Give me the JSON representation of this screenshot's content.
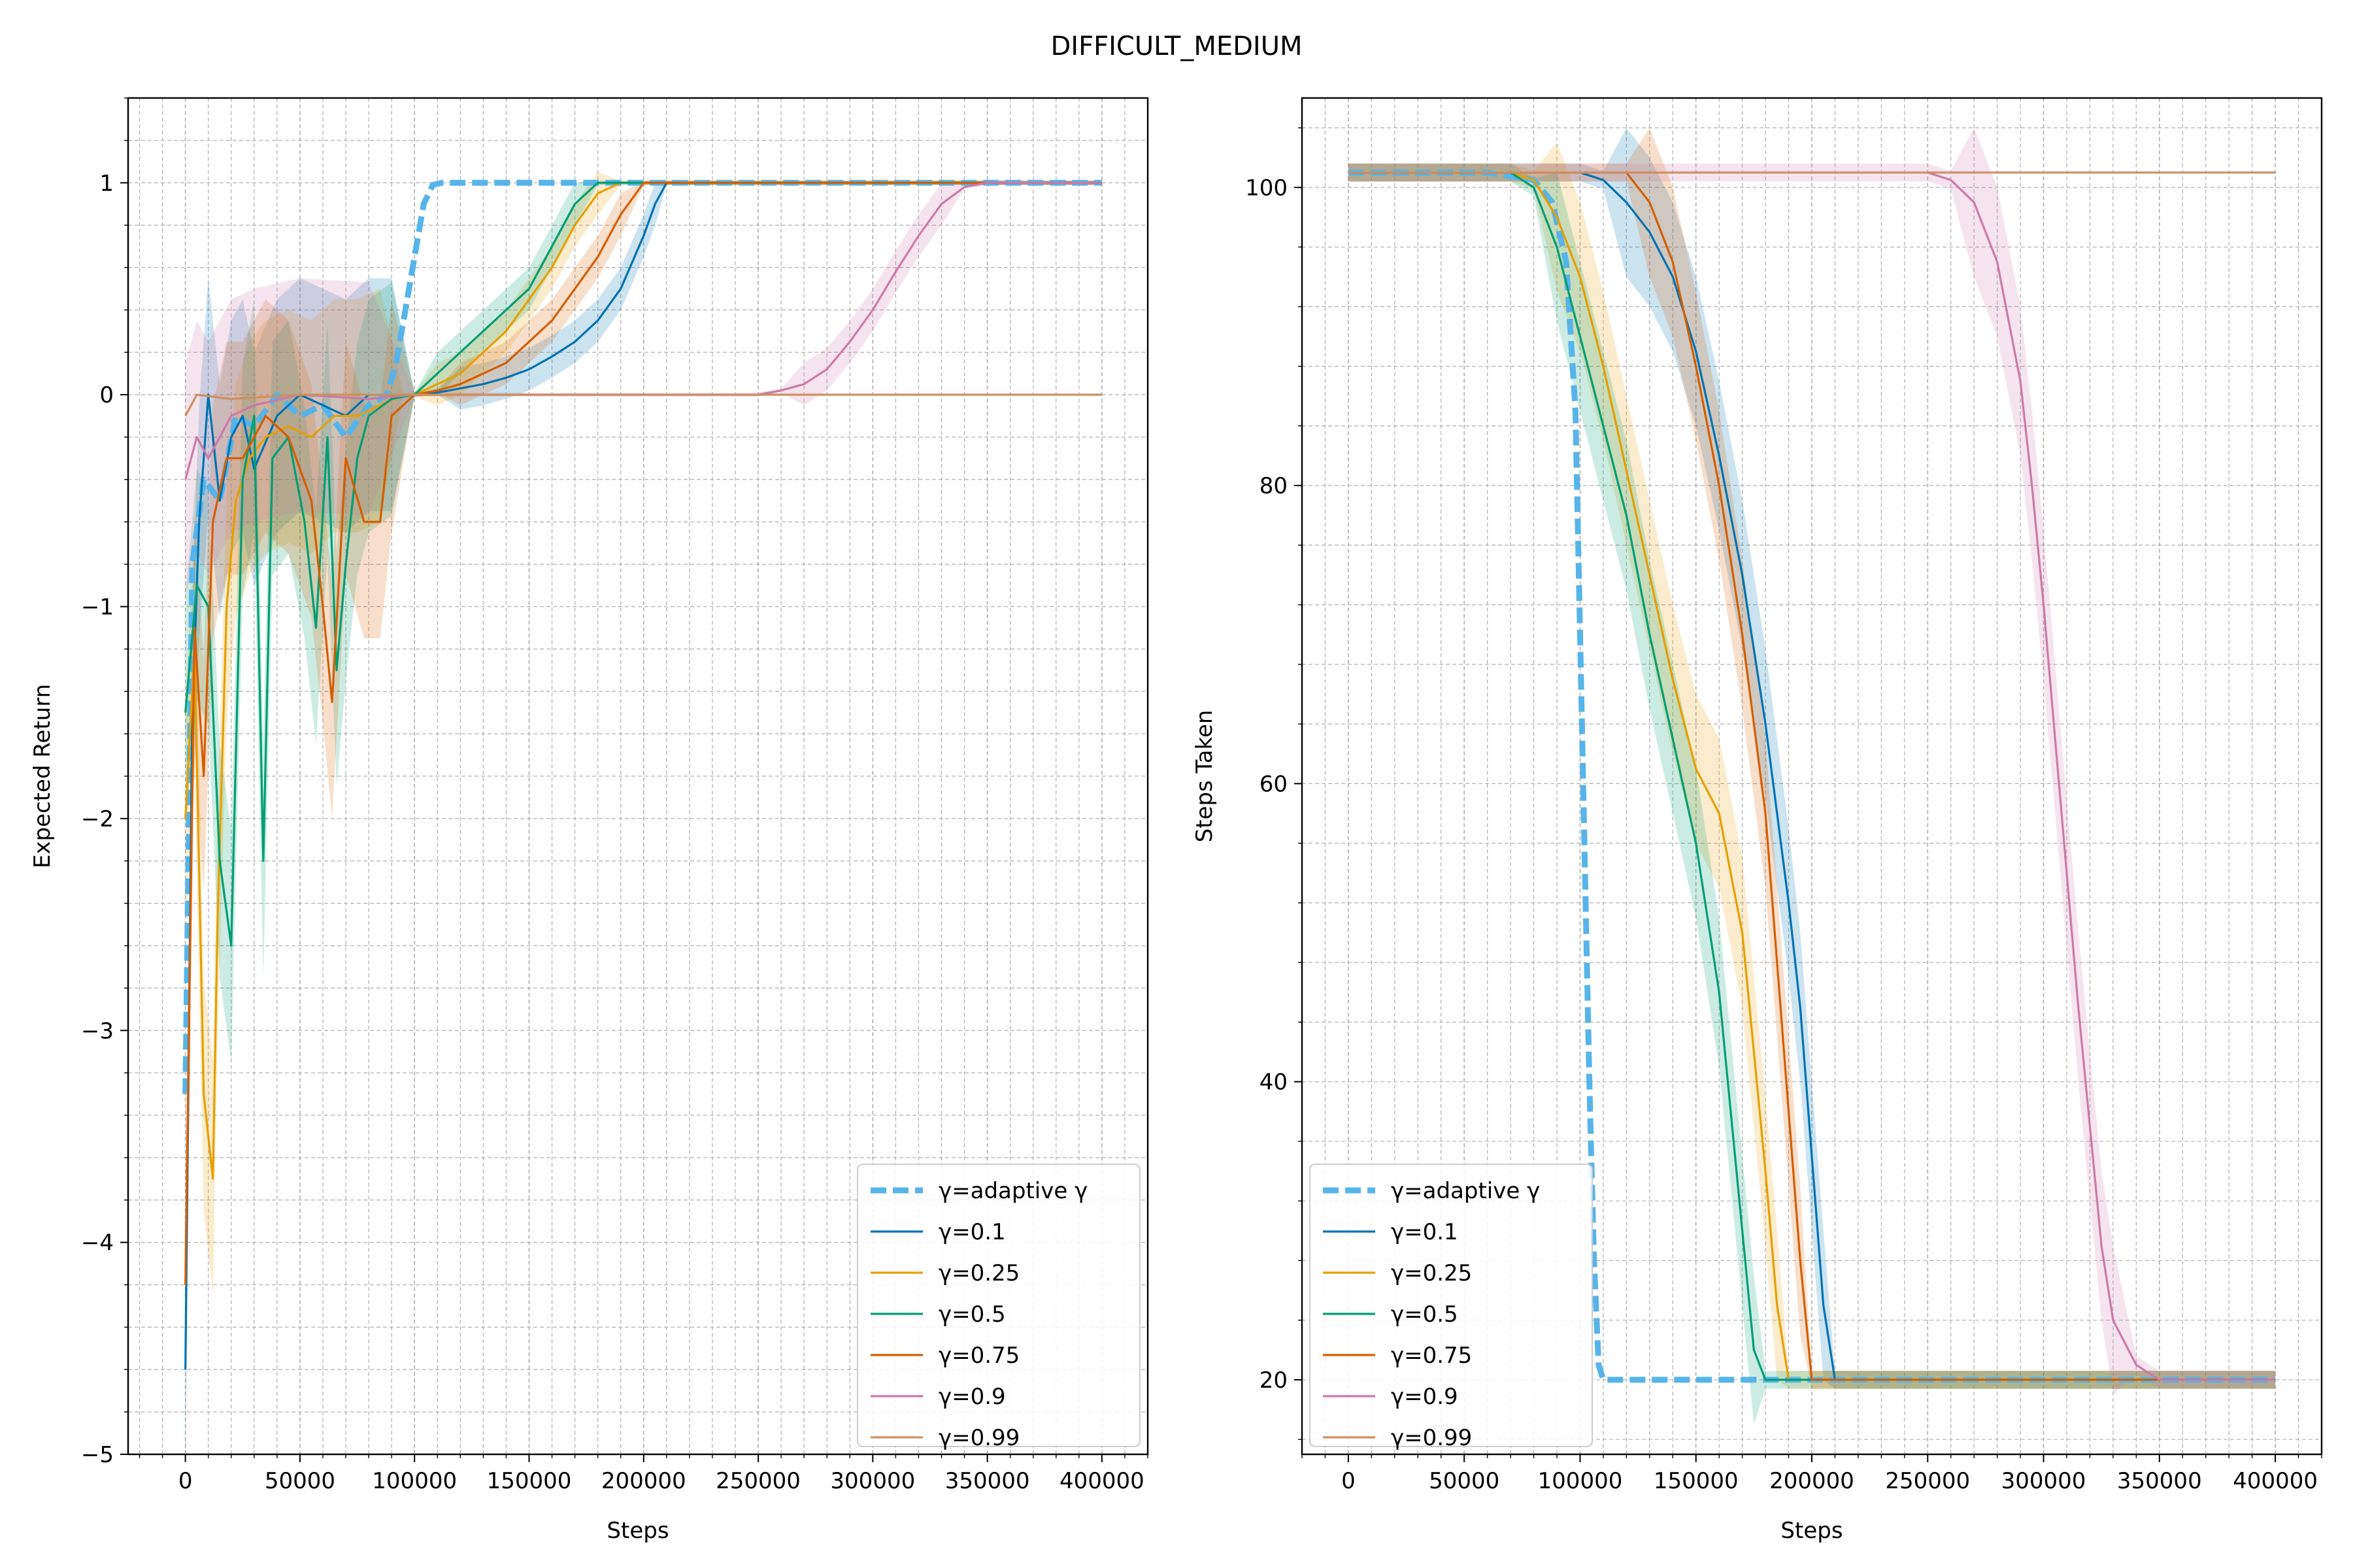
{
  "figure": {
    "title": "DIFFICULT_MEDIUM"
  },
  "colors": {
    "adaptive": "#56b4e9",
    "g01": "#0072b2",
    "g025": "#e69f00",
    "g05": "#009e73",
    "g075": "#d55e00",
    "g09": "#cc79a7",
    "g099": "#ca9161",
    "grid": "#b0b0b0"
  },
  "chart_data": [
    {
      "type": "line",
      "title": "",
      "xlabel": "Steps",
      "ylabel": "Expected Return",
      "xlim": [
        -25000,
        420000
      ],
      "ylim": [
        -5,
        1.4
      ],
      "xticks": [
        0,
        50000,
        100000,
        150000,
        200000,
        250000,
        300000,
        350000,
        400000
      ],
      "yticks": [
        -5,
        -4,
        -3,
        -2,
        -1,
        0,
        1
      ],
      "xtick_labels": [
        "0",
        "50000",
        "100000",
        "150000",
        "200000",
        "250000",
        "300000",
        "350000",
        "400000"
      ],
      "ytick_labels": [
        "−5",
        "−4",
        "−3",
        "−2",
        "−1",
        "0",
        "1"
      ],
      "grid": true,
      "legend_position": "lower-right",
      "series": [
        {
          "name": "γ=adaptive γ",
          "color_key": "adaptive",
          "dashed": true,
          "x": [
            0,
            3000,
            8000,
            15000,
            22000,
            30000,
            40000,
            50000,
            60000,
            70000,
            80000,
            88000,
            92000,
            96000,
            100000,
            104000,
            108000,
            112000,
            150000,
            200000,
            250000,
            300000,
            350000,
            400000
          ],
          "y": [
            -3.3,
            -0.8,
            -0.4,
            -0.5,
            -0.1,
            -0.15,
            0,
            -0.1,
            -0.05,
            -0.2,
            -0.05,
            0,
            0.15,
            0.4,
            0.65,
            0.9,
            0.99,
            1.0,
            1.0,
            1.0,
            1.0,
            1.0,
            1.0,
            1.0
          ]
        },
        {
          "name": "γ=0.1",
          "color_key": "g01",
          "x": [
            0,
            3000,
            6000,
            10000,
            15000,
            20000,
            25000,
            30000,
            40000,
            50000,
            60000,
            70000,
            80000,
            90000,
            100000,
            110000,
            120000,
            130000,
            140000,
            150000,
            160000,
            170000,
            180000,
            190000,
            200000,
            205000,
            210000,
            250000,
            300000,
            350000,
            400000
          ],
          "y": [
            -4.6,
            -1.5,
            -0.6,
            0,
            -0.5,
            -0.2,
            -0.1,
            -0.35,
            -0.1,
            0,
            -0.05,
            -0.1,
            0,
            0,
            0,
            0.01,
            0.03,
            0.05,
            0.08,
            0.12,
            0.18,
            0.25,
            0.35,
            0.5,
            0.75,
            0.9,
            1.0,
            1.0,
            1.0,
            1.0,
            1.0
          ]
        },
        {
          "name": "γ=0.25",
          "color_key": "g025",
          "x": [
            0,
            4000,
            8000,
            12000,
            14000,
            18000,
            22000,
            28000,
            35000,
            45000,
            55000,
            65000,
            75000,
            85000,
            95000,
            100000,
            110000,
            120000,
            130000,
            140000,
            150000,
            160000,
            170000,
            180000,
            190000,
            250000,
            300000,
            350000,
            400000
          ],
          "y": [
            -2.0,
            -1.2,
            -3.3,
            -3.7,
            -2.5,
            -1.0,
            -0.5,
            -0.3,
            -0.2,
            -0.15,
            -0.2,
            -0.1,
            -0.1,
            -0.05,
            0,
            0,
            0.05,
            0.1,
            0.2,
            0.3,
            0.45,
            0.6,
            0.8,
            0.95,
            1.0,
            1.0,
            1.0,
            1.0,
            1.0
          ]
        },
        {
          "name": "γ=0.5",
          "color_key": "g05",
          "x": [
            0,
            5000,
            10000,
            15000,
            20000,
            25000,
            30000,
            34000,
            38000,
            45000,
            52000,
            57000,
            62000,
            66000,
            70000,
            75000,
            80000,
            90000,
            100000,
            110000,
            120000,
            130000,
            140000,
            150000,
            160000,
            170000,
            180000,
            250000,
            300000,
            350000,
            400000
          ],
          "y": [
            -1.5,
            -0.9,
            -1.0,
            -2.2,
            -2.6,
            -0.4,
            -0.1,
            -2.2,
            -0.3,
            -0.2,
            -0.6,
            -1.1,
            -0.2,
            -1.3,
            -0.8,
            -0.3,
            -0.1,
            -0.02,
            0,
            0.1,
            0.2,
            0.3,
            0.4,
            0.5,
            0.7,
            0.9,
            1.0,
            1.0,
            1.0,
            1.0,
            1.0
          ]
        },
        {
          "name": "γ=0.75",
          "color_key": "g075",
          "x": [
            0,
            4000,
            8000,
            12000,
            18000,
            25000,
            35000,
            45000,
            55000,
            60000,
            64000,
            70000,
            78000,
            85000,
            90000,
            100000,
            110000,
            120000,
            130000,
            140000,
            150000,
            160000,
            170000,
            180000,
            190000,
            200000,
            250000,
            300000,
            350000,
            400000
          ],
          "y": [
            -4.2,
            -1.1,
            -1.8,
            -0.6,
            -0.3,
            -0.3,
            -0.1,
            -0.2,
            -0.5,
            -1.0,
            -1.45,
            -0.3,
            -0.6,
            -0.6,
            -0.1,
            0,
            0.02,
            0.05,
            0.1,
            0.15,
            0.25,
            0.35,
            0.5,
            0.65,
            0.85,
            1.0,
            1.0,
            1.0,
            1.0,
            1.0
          ]
        },
        {
          "name": "γ=0.9",
          "color_key": "g09",
          "x": [
            0,
            5000,
            10000,
            20000,
            30000,
            50000,
            80000,
            100000,
            150000,
            200000,
            240000,
            250000,
            260000,
            270000,
            280000,
            290000,
            300000,
            310000,
            320000,
            330000,
            340000,
            350000,
            400000
          ],
          "y": [
            -0.4,
            -0.2,
            -0.3,
            -0.1,
            -0.05,
            0,
            -0.02,
            0,
            0,
            0,
            0,
            0,
            0.02,
            0.05,
            0.12,
            0.25,
            0.4,
            0.58,
            0.75,
            0.9,
            0.98,
            1.0,
            1.0
          ]
        },
        {
          "name": "γ=0.99",
          "color_key": "g099",
          "x": [
            0,
            5000,
            20000,
            50000,
            100000,
            200000,
            300000,
            400000
          ],
          "y": [
            -0.1,
            0,
            -0.02,
            0,
            0,
            0,
            0,
            0
          ]
        }
      ]
    },
    {
      "type": "line",
      "title": "",
      "xlabel": "Steps",
      "ylabel": "Steps Taken",
      "xlim": [
        -20000,
        420000
      ],
      "ylim": [
        15,
        106
      ],
      "xticks": [
        0,
        50000,
        100000,
        150000,
        200000,
        250000,
        300000,
        350000,
        400000
      ],
      "yticks": [
        20,
        40,
        60,
        80,
        100
      ],
      "xtick_labels": [
        "0",
        "50000",
        "100000",
        "150000",
        "200000",
        "250000",
        "300000",
        "350000",
        "400000"
      ],
      "ytick_labels": [
        "20",
        "40",
        "60",
        "80",
        "100"
      ],
      "grid": true,
      "legend_position": "lower-left",
      "series": [
        {
          "name": "γ=adaptive γ",
          "color_key": "adaptive",
          "dashed": true,
          "x": [
            0,
            60000,
            80000,
            88000,
            94000,
            98000,
            100000,
            102000,
            104000,
            106000,
            108000,
            110000,
            150000,
            200000,
            250000,
            300000,
            350000,
            400000
          ],
          "y": [
            101,
            101,
            100.5,
            99,
            95,
            85,
            70,
            55,
            40,
            28,
            21,
            20,
            20,
            20,
            20,
            20,
            20,
            20
          ]
        },
        {
          "name": "γ=0.1",
          "color_key": "g01",
          "x": [
            0,
            60000,
            80000,
            100000,
            110000,
            120000,
            130000,
            140000,
            150000,
            160000,
            170000,
            180000,
            190000,
            195000,
            200000,
            205000,
            210000,
            250000,
            300000,
            350000,
            400000
          ],
          "y": [
            101,
            101,
            101,
            101,
            100.5,
            99,
            97,
            94,
            89,
            82,
            74,
            64,
            52,
            45,
            35,
            25,
            20,
            20,
            20,
            20,
            20
          ]
        },
        {
          "name": "γ=0.25",
          "color_key": "g025",
          "x": [
            0,
            50000,
            70000,
            80000,
            90000,
            100000,
            110000,
            120000,
            130000,
            140000,
            150000,
            160000,
            170000,
            175000,
            180000,
            185000,
            190000,
            250000,
            300000,
            350000,
            400000
          ],
          "y": [
            101,
            101,
            101,
            100.5,
            98,
            94,
            88,
            81,
            74,
            67,
            61,
            58,
            50,
            42,
            34,
            25,
            20,
            20,
            20,
            20,
            20
          ]
        },
        {
          "name": "γ=0.5",
          "color_key": "g05",
          "x": [
            0,
            50000,
            70000,
            80000,
            90000,
            100000,
            110000,
            120000,
            130000,
            140000,
            150000,
            160000,
            165000,
            170000,
            175000,
            180000,
            250000,
            300000,
            350000,
            400000
          ],
          "y": [
            101,
            101,
            101,
            100,
            96,
            90,
            84,
            78,
            70,
            63,
            56,
            46,
            38,
            30,
            22,
            20,
            20,
            20,
            20,
            20
          ]
        },
        {
          "name": "γ=0.75",
          "color_key": "g075",
          "x": [
            0,
            60000,
            80000,
            100000,
            110000,
            120000,
            130000,
            140000,
            150000,
            160000,
            170000,
            180000,
            185000,
            190000,
            195000,
            200000,
            250000,
            300000,
            350000,
            400000
          ],
          "y": [
            101,
            101,
            101,
            101,
            101,
            101,
            99,
            95,
            88,
            80,
            70,
            58,
            48,
            38,
            28,
            20,
            20,
            20,
            20,
            20
          ]
        },
        {
          "name": "γ=0.9",
          "color_key": "g09",
          "x": [
            0,
            100000,
            200000,
            250000,
            260000,
            270000,
            280000,
            290000,
            295000,
            300000,
            305000,
            310000,
            315000,
            320000,
            325000,
            330000,
            340000,
            350000,
            400000
          ],
          "y": [
            101,
            101,
            101,
            101,
            100.5,
            99,
            95,
            87,
            80,
            72,
            63,
            54,
            45,
            37,
            29,
            24,
            21,
            20,
            20
          ]
        },
        {
          "name": "γ=0.99",
          "color_key": "g099",
          "x": [
            0,
            100000,
            200000,
            300000,
            400000
          ],
          "y": [
            101,
            101,
            101,
            101,
            101
          ]
        }
      ]
    }
  ]
}
